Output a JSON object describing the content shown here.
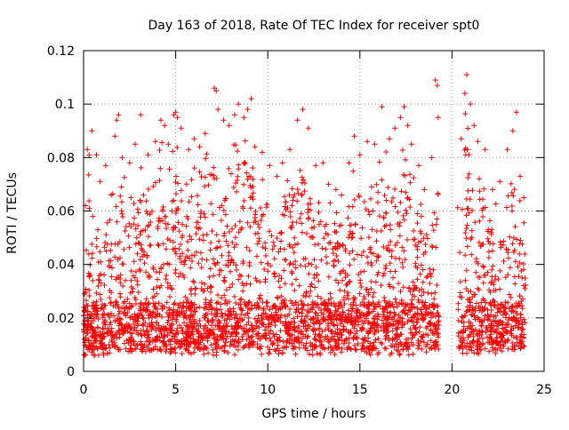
{
  "chart_data": {
    "type": "scatter",
    "title": "Day 163 of 2018, Rate Of TEC Index for receiver spt0",
    "xlabel": "GPS time / hours",
    "ylabel": "ROTI / TECUs",
    "xlim": [
      0,
      25
    ],
    "ylim": [
      0,
      0.12
    ],
    "x_ticks": [
      0,
      5,
      10,
      15,
      20,
      25
    ],
    "x_tick_labels": [
      "0",
      "5",
      "10",
      "15",
      "20",
      "25"
    ],
    "y_ticks": [
      0,
      0.02,
      0.04,
      0.06,
      0.08,
      0.1,
      0.12
    ],
    "y_tick_labels": [
      "0",
      "0.02",
      "0.04",
      "0.06",
      "0.08",
      "0.1",
      "0.12"
    ],
    "grid": true,
    "marker": "+",
    "marker_color": "#ff0000",
    "data_gap_hours": [
      19.3,
      20.3
    ],
    "series": [
      {
        "name": "ROTI",
        "points": [
          [
            0.05,
            0.029
          ],
          [
            0.1,
            0.062
          ],
          [
            0.2,
            0.083
          ],
          [
            0.3,
            0.081
          ],
          [
            0.45,
            0.09
          ],
          [
            0.5,
            0.058
          ],
          [
            0.6,
            0.015
          ],
          [
            0.7,
            0.081
          ],
          [
            0.9,
            0.071
          ],
          [
            1.0,
            0.012
          ],
          [
            1.2,
            0.077
          ],
          [
            1.5,
            0.066
          ],
          [
            1.7,
            0.088
          ],
          [
            1.8,
            0.094
          ],
          [
            1.9,
            0.096
          ],
          [
            2.1,
            0.08
          ],
          [
            2.5,
            0.078
          ],
          [
            2.8,
            0.085
          ],
          [
            3.1,
            0.096
          ],
          [
            3.5,
            0.081
          ],
          [
            3.9,
            0.086
          ],
          [
            4.2,
            0.094
          ],
          [
            4.4,
            0.092
          ],
          [
            4.6,
            0.085
          ],
          [
            4.9,
            0.096
          ],
          [
            5.0,
            0.097
          ],
          [
            5.1,
            0.095
          ],
          [
            5.3,
            0.091
          ],
          [
            5.7,
            0.083
          ],
          [
            6.0,
            0.087
          ],
          [
            6.3,
            0.084
          ],
          [
            6.6,
            0.089
          ],
          [
            7.1,
            0.106
          ],
          [
            7.2,
            0.105
          ],
          [
            7.3,
            0.098
          ],
          [
            7.6,
            0.094
          ],
          [
            7.9,
            0.092
          ],
          [
            8.2,
            0.096
          ],
          [
            8.4,
            0.1
          ],
          [
            8.7,
            0.095
          ],
          [
            8.9,
            0.098
          ],
          [
            9.1,
            0.102
          ],
          [
            9.3,
            0.084
          ],
          [
            9.7,
            0.082
          ],
          [
            10.1,
            0.077
          ],
          [
            10.5,
            0.073
          ],
          [
            10.8,
            0.078
          ],
          [
            11.2,
            0.083
          ],
          [
            11.6,
            0.094
          ],
          [
            11.9,
            0.098
          ],
          [
            12.2,
            0.091
          ],
          [
            12.6,
            0.077
          ],
          [
            13.0,
            0.078
          ],
          [
            13.3,
            0.07
          ],
          [
            13.7,
            0.068
          ],
          [
            14.0,
            0.066
          ],
          [
            14.4,
            0.078
          ],
          [
            14.7,
            0.088
          ],
          [
            15.0,
            0.081
          ],
          [
            15.4,
            0.086
          ],
          [
            15.8,
            0.085
          ],
          [
            16.2,
            0.099
          ],
          [
            16.6,
            0.087
          ],
          [
            16.9,
            0.091
          ],
          [
            17.2,
            0.095
          ],
          [
            17.4,
            0.099
          ],
          [
            17.6,
            0.092
          ],
          [
            17.8,
            0.085
          ],
          [
            18.2,
            0.077
          ],
          [
            18.5,
            0.068
          ],
          [
            18.9,
            0.08
          ],
          [
            19.1,
            0.109
          ],
          [
            19.2,
            0.107
          ],
          [
            19.25,
            0.095
          ],
          [
            20.5,
            0.087
          ],
          [
            20.7,
            0.104
          ],
          [
            20.8,
            0.111
          ],
          [
            21.0,
            0.1
          ],
          [
            21.2,
            0.092
          ],
          [
            21.4,
            0.086
          ],
          [
            21.8,
            0.083
          ],
          [
            22.2,
            0.068
          ],
          [
            22.6,
            0.071
          ],
          [
            23.0,
            0.083
          ],
          [
            23.3,
            0.09
          ],
          [
            23.5,
            0.097
          ],
          [
            23.7,
            0.073
          ],
          [
            23.9,
            0.065
          ]
        ]
      }
    ]
  }
}
